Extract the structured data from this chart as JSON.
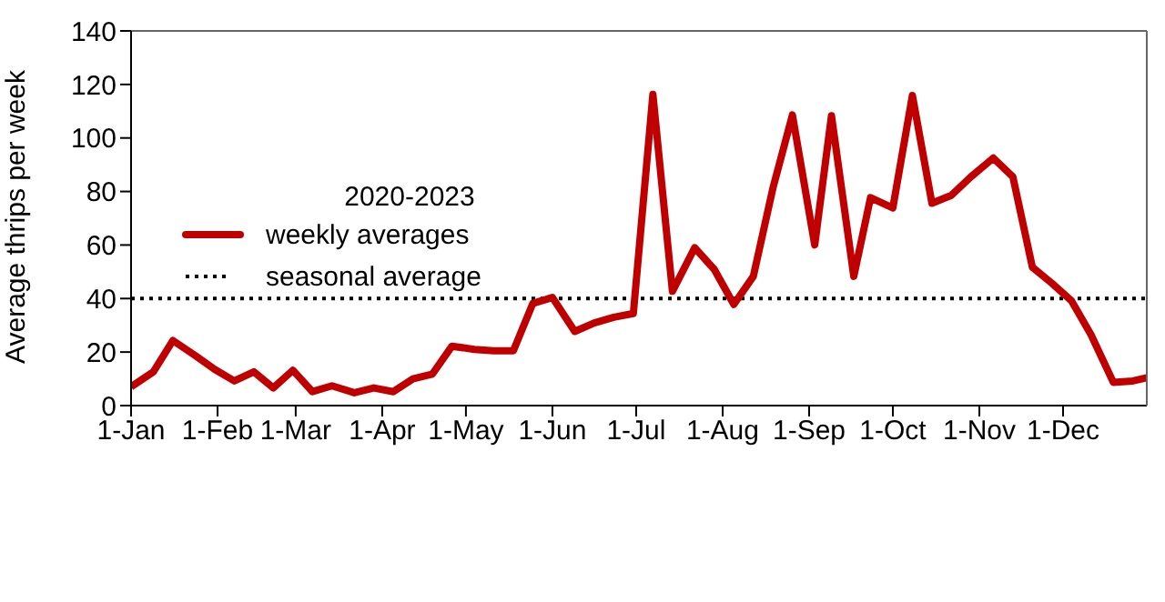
{
  "chart_data": {
    "type": "line",
    "ylabel": "Average thrips per week",
    "legend_title": "2020-2023",
    "x": [
      "--01-01",
      "--01-09",
      "--01-16",
      "--01-24",
      "--01-31",
      "--02-07",
      "--02-14",
      "--02-21",
      "--02-28",
      "--03-07",
      "--03-14",
      "--03-22",
      "--03-29",
      "--04-05",
      "--04-12",
      "--04-19",
      "--04-26",
      "--05-04",
      "--05-11",
      "--05-18",
      "--05-25",
      "--06-01",
      "--06-09",
      "--06-16",
      "--06-23",
      "--06-30",
      "--07-07",
      "--07-14",
      "--07-22",
      "--07-29",
      "--08-05",
      "--08-12",
      "--08-19",
      "--08-26",
      "--09-03",
      "--09-09",
      "--09-17",
      "--09-23",
      "--10-01",
      "--10-08",
      "--10-15",
      "--10-22",
      "--10-29",
      "--11-06",
      "--11-13",
      "--11-20",
      "--11-27",
      "--12-04",
      "--12-11",
      "--12-19",
      "--12-26",
      "--12-31"
    ],
    "series": [
      {
        "name": "weekly averages",
        "color": "#c00000",
        "values": [
          7,
          12.6,
          24.3,
          18.7,
          13.5,
          9.2,
          12.6,
          6.6,
          13.2,
          5.2,
          7.4,
          4.8,
          6.6,
          5.2,
          10,
          11.8,
          22.2,
          21,
          20.5,
          20.5,
          38.2,
          40.4,
          27.7,
          30.9,
          33,
          34.4,
          116.3,
          42.7,
          59,
          50.9,
          37.8,
          48.3,
          81.2,
          108.6,
          60,
          108.3,
          48.3,
          77.7,
          73.9,
          115.9,
          75.6,
          78.6,
          85.5,
          92.5,
          85.5,
          51.7,
          45.7,
          39.2,
          26.5,
          8.7,
          9.2,
          10.4
        ]
      }
    ],
    "ref_lines": [
      {
        "axis": "y",
        "value": 40,
        "label": "seasonal average",
        "color": "#000000",
        "line_style": "dotted"
      }
    ],
    "xlim": [
      "--01-01",
      "--12-31"
    ],
    "xticks": [
      {
        "value": "--01-01",
        "label": "1-Jan"
      },
      {
        "value": "--02-01",
        "label": "1-Feb"
      },
      {
        "value": "--03-01",
        "label": "1-Mar"
      },
      {
        "value": "--04-01",
        "label": "1-Apr"
      },
      {
        "value": "--05-01",
        "label": "1-May"
      },
      {
        "value": "--06-01",
        "label": "1-Jun"
      },
      {
        "value": "--07-01",
        "label": "1-Jul"
      },
      {
        "value": "--08-01",
        "label": "1-Aug"
      },
      {
        "value": "--09-01",
        "label": "1-Sep"
      },
      {
        "value": "--10-01",
        "label": "1-Oct"
      },
      {
        "value": "--11-01",
        "label": "1-Nov"
      },
      {
        "value": "--12-01",
        "label": "1-Dec"
      }
    ],
    "ylim": [
      0,
      140
    ],
    "yticks": [
      0,
      20,
      40,
      60,
      80,
      100,
      120,
      140
    ],
    "grid": false,
    "legend": "left",
    "marker": "none",
    "line_style": "solid"
  }
}
